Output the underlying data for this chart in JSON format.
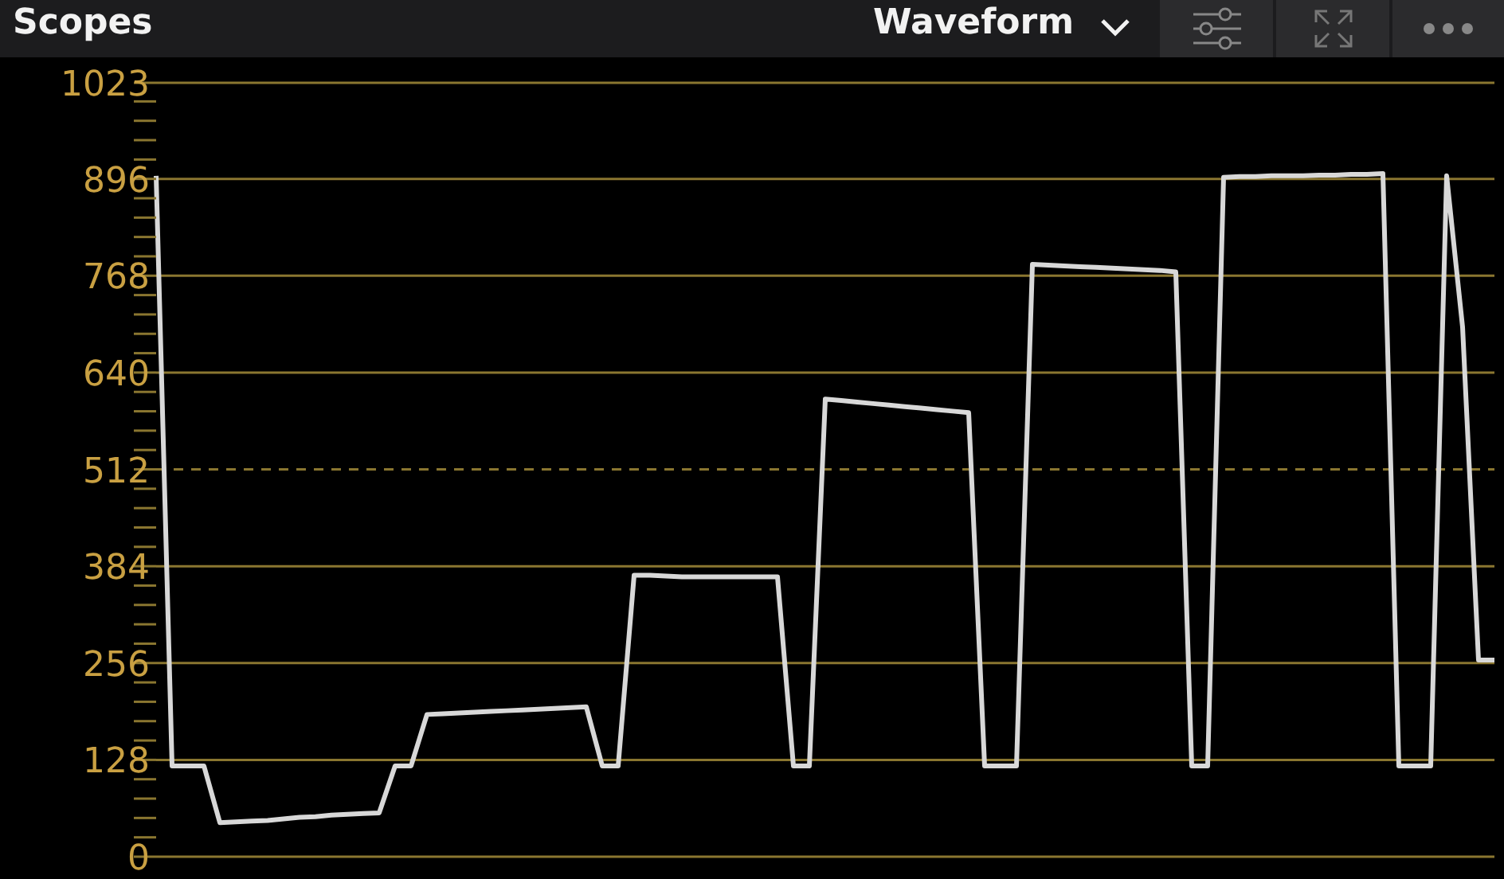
{
  "chart_data": {
    "type": "line",
    "title": "Scopes",
    "subtitle": "Waveform",
    "categories": [
      null,
      null,
      null,
      null,
      null,
      null,
      null,
      null,
      null,
      null,
      null,
      null,
      null,
      null,
      null,
      null,
      null,
      null,
      null,
      null,
      null,
      null,
      null,
      null,
      null,
      null,
      null,
      null,
      null,
      null,
      null,
      null,
      null,
      null,
      null,
      null,
      null,
      null,
      null,
      null,
      null,
      null,
      null,
      null,
      null,
      null,
      null,
      null,
      null,
      null,
      null,
      null,
      null,
      null,
      null,
      null,
      null,
      null,
      null,
      null,
      null,
      null,
      null,
      null,
      null,
      null,
      null,
      null,
      null,
      null,
      null,
      null,
      null,
      null,
      null,
      null,
      null,
      null,
      null,
      null,
      null,
      null,
      null,
      null,
      null
    ],
    "series": [
      {
        "color": "#d8d8d8",
        "values": [
          900,
          120,
          120,
          120,
          45,
          46,
          47,
          48,
          50,
          52,
          53,
          55,
          56,
          57,
          58,
          120,
          120,
          188,
          189,
          190,
          191,
          192,
          193,
          194,
          195,
          196,
          197,
          198,
          120,
          120,
          372,
          372,
          371,
          370,
          370,
          370,
          370,
          370,
          370,
          370,
          120,
          120,
          605,
          603,
          601,
          599,
          597,
          595,
          593,
          591,
          589,
          587,
          120,
          120,
          120,
          783,
          782,
          781,
          780,
          779,
          778,
          777,
          776,
          775,
          773,
          120,
          120,
          898,
          899,
          899,
          900,
          900,
          900,
          901,
          901,
          902,
          902,
          903,
          120,
          120,
          120,
          900,
          700,
          260,
          260
        ]
      }
    ],
    "ylim": [
      0,
      1023
    ],
    "yticks": [
      0,
      {
        "value": 25.6,
        "label": null
      },
      {
        "value": 51.2,
        "label": null
      },
      {
        "value": 76.8,
        "label": null
      },
      {
        "value": 102.4,
        "label": null
      },
      128,
      {
        "value": 153.6,
        "label": null
      },
      {
        "value": 179.2,
        "label": null
      },
      {
        "value": 204.8,
        "label": null
      },
      {
        "value": 230.4,
        "label": null
      },
      256,
      {
        "value": 281.6,
        "label": null
      },
      {
        "value": 307.2,
        "label": null
      },
      {
        "value": 332.8,
        "label": null
      },
      {
        "value": 358.4,
        "label": null
      },
      384,
      {
        "value": 409.6,
        "label": null
      },
      {
        "value": 435.2,
        "label": null
      },
      {
        "value": 460.8,
        "label": null
      },
      {
        "value": 486.4,
        "label": null
      },
      512,
      {
        "value": 537.6,
        "label": null
      },
      {
        "value": 563.2,
        "label": null
      },
      {
        "value": 588.8,
        "label": null
      },
      {
        "value": 614.4,
        "label": null
      },
      640,
      {
        "value": 665.6,
        "label": null
      },
      {
        "value": 691.2,
        "label": null
      },
      {
        "value": 716.8,
        "label": null
      },
      {
        "value": 742.4,
        "label": null
      },
      768,
      {
        "value": 793.6,
        "label": null
      },
      {
        "value": 819.2,
        "label": null
      },
      {
        "value": 844.8,
        "label": null
      },
      {
        "value": 870.4,
        "label": null
      },
      896,
      {
        "value": 921.6,
        "label": null
      },
      {
        "value": 947.2,
        "label": null
      },
      {
        "value": 972.8,
        "label": null
      },
      {
        "value": 998.4,
        "label": null
      },
      1023
    ],
    "grid": "y",
    "ref_lines": [
      {
        "axis": "y",
        "value": 512,
        "line_style": "dashed",
        "color": "#8a7630"
      }
    ],
    "marker": "none"
  }
}
